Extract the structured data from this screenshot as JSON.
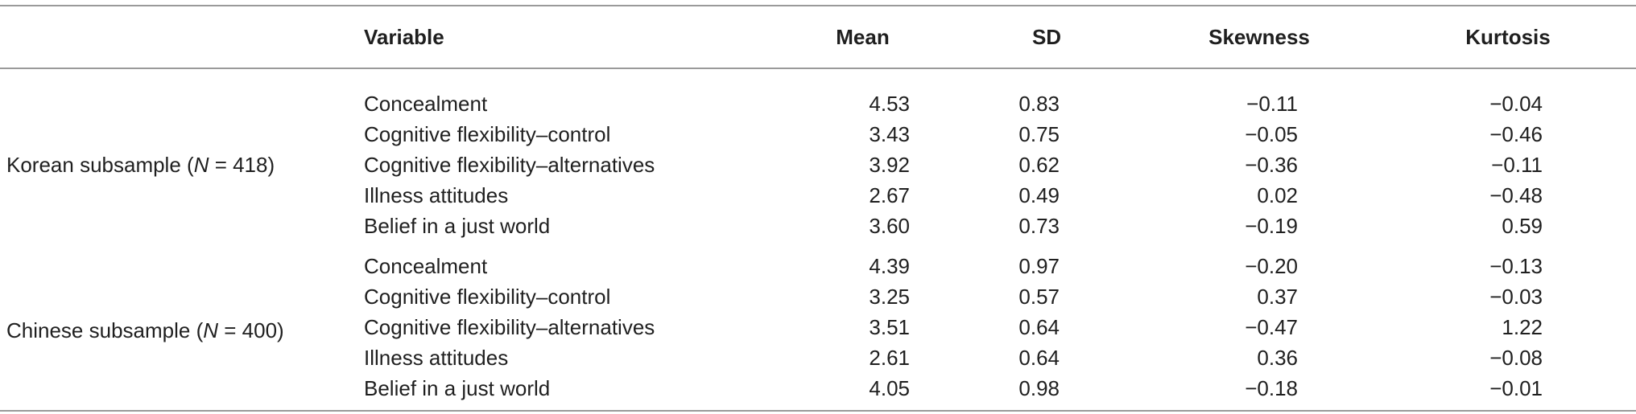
{
  "headers": {
    "group": "",
    "variable": "Variable",
    "mean": "Mean",
    "sd": "SD",
    "skewness": "Skewness",
    "kurtosis": "Kurtosis"
  },
  "groups": [
    {
      "label_prefix": "Korean subsample (",
      "label_n": "N",
      "label_suffix": " = 418)",
      "rows": [
        {
          "variable": "Concealment",
          "mean": "4.53",
          "sd": "0.83",
          "skewness": "−0.11",
          "kurtosis": "−0.04"
        },
        {
          "variable": "Cognitive flexibility–control",
          "mean": "3.43",
          "sd": "0.75",
          "skewness": "−0.05",
          "kurtosis": "−0.46"
        },
        {
          "variable": "Cognitive flexibility–alternatives",
          "mean": "3.92",
          "sd": "0.62",
          "skewness": "−0.36",
          "kurtosis": "−0.11"
        },
        {
          "variable": "Illness attitudes",
          "mean": "2.67",
          "sd": "0.49",
          "skewness": "0.02",
          "kurtosis": "−0.48"
        },
        {
          "variable": "Belief in a just world",
          "mean": "3.60",
          "sd": "0.73",
          "skewness": "−0.19",
          "kurtosis": "0.59"
        }
      ]
    },
    {
      "label_prefix": "Chinese subsample (",
      "label_n": "N",
      "label_suffix": " = 400)",
      "rows": [
        {
          "variable": "Concealment",
          "mean": "4.39",
          "sd": "0.97",
          "skewness": "−0.20",
          "kurtosis": "−0.13"
        },
        {
          "variable": "Cognitive flexibility–control",
          "mean": "3.25",
          "sd": "0.57",
          "skewness": "0.37",
          "kurtosis": "−0.03"
        },
        {
          "variable": "Cognitive flexibility–alternatives",
          "mean": "3.51",
          "sd": "0.64",
          "skewness": "−0.47",
          "kurtosis": "1.22"
        },
        {
          "variable": "Illness attitudes",
          "mean": "2.61",
          "sd": "0.64",
          "skewness": "0.36",
          "kurtosis": "−0.08"
        },
        {
          "variable": "Belief in a just world",
          "mean": "4.05",
          "sd": "0.98",
          "skewness": "−0.18",
          "kurtosis": "−0.01"
        }
      ]
    }
  ]
}
